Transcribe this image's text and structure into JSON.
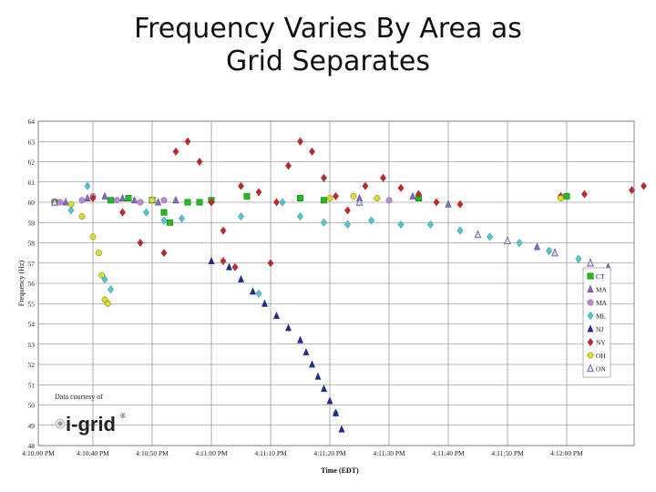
{
  "slide": {
    "title_line1": "Frequency Varies By Area as",
    "title_line2": "Grid Separates"
  },
  "credit": {
    "text": "Data courtesy of",
    "logo_text": "i-grid",
    "logo_mark": "®"
  },
  "chart_data": {
    "type": "scatter",
    "xlabel": "Time (EDT)",
    "ylabel": "Frequency (Hz)",
    "x_ticks": [
      "4:10:00 PM",
      "4:10:40 PM",
      "4:10:50 PM",
      "4:11:00 PM",
      "4:11:10 PM",
      "4:11:20 PM",
      "4:11:30 PM",
      "4:11:40 PM",
      "4:11:50 PM",
      "4:12:00 PM"
    ],
    "y_ticks": [
      "64",
      "63",
      "62",
      "61",
      "60",
      "59",
      "58",
      "57",
      "56",
      "55",
      "54",
      "53",
      "52",
      "51",
      "50",
      "49",
      "48"
    ],
    "ylim": [
      48,
      64
    ],
    "grid": true,
    "legend_position": "right",
    "series": [
      {
        "name": "CT",
        "color": "#22bb22",
        "marker": "square",
        "points": [
          [
            0.3,
            60
          ],
          [
            1.3,
            60.1
          ],
          [
            1.6,
            60.2
          ],
          [
            2.0,
            60.1
          ],
          [
            2.2,
            59.5
          ],
          [
            2.3,
            59
          ],
          [
            2.6,
            60
          ],
          [
            2.8,
            60
          ],
          [
            3.0,
            60.1
          ],
          [
            3.6,
            60.3
          ],
          [
            4.5,
            60.2
          ],
          [
            4.9,
            60.1
          ],
          [
            6.5,
            60.2
          ],
          [
            9.0,
            60.3
          ]
        ]
      },
      {
        "name": "MA",
        "color": "#8866cc",
        "marker": "triangle",
        "points": [
          [
            0.5,
            60
          ],
          [
            0.9,
            60.2
          ],
          [
            1.2,
            60.3
          ],
          [
            1.5,
            60.2
          ],
          [
            1.7,
            60.1
          ],
          [
            2.1,
            60
          ],
          [
            2.4,
            60.1
          ],
          [
            5.5,
            60.2
          ],
          [
            6.4,
            60.3
          ],
          [
            7.0,
            59.9
          ],
          [
            8.5,
            57.8
          ],
          [
            9.7,
            56.8
          ]
        ]
      },
      {
        "name": "MA",
        "color": "#bb88dd",
        "marker": "circle",
        "points": [
          [
            0.4,
            60
          ],
          [
            0.8,
            60.1
          ],
          [
            1.0,
            60.3
          ],
          [
            1.4,
            60.1
          ],
          [
            1.8,
            60
          ],
          [
            2.2,
            60.1
          ],
          [
            6.0,
            60.1
          ]
        ]
      },
      {
        "name": "ML",
        "color": "#44ccdd",
        "marker": "diamond",
        "points": [
          [
            0.6,
            59.6
          ],
          [
            0.9,
            60.8
          ],
          [
            1.2,
            56.2
          ],
          [
            1.3,
            55.7
          ],
          [
            1.9,
            59.5
          ],
          [
            2.2,
            59.1
          ],
          [
            2.5,
            59.2
          ],
          [
            3.5,
            59.3
          ],
          [
            3.8,
            55.5
          ],
          [
            4.2,
            60
          ],
          [
            4.5,
            59.3
          ],
          [
            4.9,
            59.0
          ],
          [
            5.3,
            58.9
          ],
          [
            5.7,
            59.1
          ],
          [
            6.2,
            58.9
          ],
          [
            6.7,
            58.9
          ],
          [
            7.2,
            58.6
          ],
          [
            7.7,
            58.3
          ],
          [
            8.2,
            58.0
          ],
          [
            8.7,
            57.6
          ],
          [
            9.2,
            57.2
          ],
          [
            9.6,
            56.6
          ],
          [
            5.1,
            49.6
          ]
        ]
      },
      {
        "name": "NJ",
        "color": "#1a2aa0",
        "marker": "triangle",
        "points": [
          [
            3.0,
            57.1
          ],
          [
            3.3,
            56.8
          ],
          [
            3.5,
            56.2
          ],
          [
            3.7,
            55.6
          ],
          [
            3.9,
            55.0
          ],
          [
            4.1,
            54.4
          ],
          [
            4.3,
            53.8
          ],
          [
            4.5,
            53.2
          ],
          [
            4.6,
            52.6
          ],
          [
            4.7,
            52.0
          ],
          [
            4.8,
            51.4
          ],
          [
            4.9,
            50.8
          ],
          [
            5.0,
            50.2
          ],
          [
            5.1,
            49.6
          ],
          [
            5.2,
            48.8
          ]
        ]
      },
      {
        "name": "NY",
        "color": "#cc2222",
        "marker": "diamond",
        "points": [
          [
            0.3,
            60
          ],
          [
            1.0,
            60.2
          ],
          [
            1.5,
            59.5
          ],
          [
            1.8,
            58.0
          ],
          [
            2.2,
            57.5
          ],
          [
            2.4,
            62.5
          ],
          [
            2.6,
            63.0
          ],
          [
            2.8,
            62.0
          ],
          [
            3.0,
            60.0
          ],
          [
            3.2,
            58.6
          ],
          [
            3.5,
            60.8
          ],
          [
            3.8,
            60.5
          ],
          [
            4.1,
            60.0
          ],
          [
            4.3,
            61.8
          ],
          [
            4.5,
            63.0
          ],
          [
            4.7,
            62.5
          ],
          [
            4.9,
            61.2
          ],
          [
            5.1,
            60.3
          ],
          [
            5.3,
            59.6
          ],
          [
            5.6,
            60.8
          ],
          [
            5.9,
            61.2
          ],
          [
            6.2,
            60.7
          ],
          [
            6.5,
            60.4
          ],
          [
            6.8,
            60.0
          ],
          [
            7.2,
            59.9
          ],
          [
            8.9,
            60.3
          ],
          [
            9.3,
            60.4
          ],
          [
            10.1,
            60.6
          ],
          [
            10.3,
            60.8
          ],
          [
            4.0,
            57.0
          ],
          [
            3.2,
            57.1
          ],
          [
            3.4,
            56.8
          ]
        ]
      },
      {
        "name": "OH",
        "color": "#dddd22",
        "marker": "circle",
        "points": [
          [
            0.6,
            59.9
          ],
          [
            0.8,
            59.3
          ],
          [
            1.0,
            58.3
          ],
          [
            1.1,
            57.5
          ],
          [
            1.15,
            56.4
          ],
          [
            1.2,
            55.2
          ],
          [
            1.25,
            55.0
          ],
          [
            2.0,
            60.1
          ],
          [
            5.0,
            60.2
          ],
          [
            5.4,
            60.3
          ],
          [
            5.8,
            60.2
          ],
          [
            8.9,
            60.2
          ]
        ]
      },
      {
        "name": "ON",
        "color": "#7766bb",
        "marker": "triangle_outline",
        "points": [
          [
            0.3,
            60.0
          ],
          [
            5.5,
            60.0
          ],
          [
            7.5,
            58.4
          ],
          [
            8.0,
            58.1
          ],
          [
            8.8,
            57.5
          ],
          [
            9.4,
            57.0
          ]
        ]
      }
    ]
  }
}
